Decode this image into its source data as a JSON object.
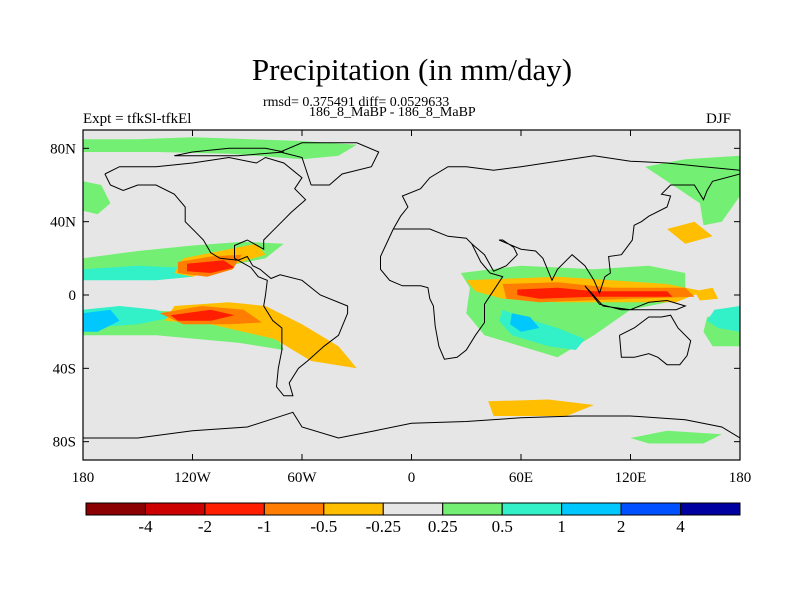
{
  "header": {
    "title": "Precipitation (in mm/day)",
    "stats": "rmsd= 0.375491 diff= 0.0529633",
    "runs": "186_8_MaBP - 186_8_MaBP",
    "expt": "Expt = tfkSl-tfkEl",
    "season": "DJF"
  },
  "chart_data": {
    "type": "heatmap",
    "title": "Precipitation (in mm/day)",
    "subtitle": "186_8_MaBP - 186_8_MaBP",
    "annotations": [
      "rmsd= 0.375491 diff= 0.0529633",
      "Expt = tfkSl-tfkEl",
      "DJF"
    ],
    "xlim": [
      -180,
      180
    ],
    "ylim": [
      -90,
      90
    ],
    "x_ticks": [
      {
        "value": -180,
        "label": "180"
      },
      {
        "value": -120,
        "label": "120W"
      },
      {
        "value": -60,
        "label": "60W"
      },
      {
        "value": 0,
        "label": "0"
      },
      {
        "value": 60,
        "label": "60E"
      },
      {
        "value": 120,
        "label": "120E"
      },
      {
        "value": 180,
        "label": "180"
      }
    ],
    "y_ticks": [
      {
        "value": 80,
        "label": "80N"
      },
      {
        "value": 40,
        "label": "40N"
      },
      {
        "value": 0,
        "label": "0"
      },
      {
        "value": -40,
        "label": "40S"
      },
      {
        "value": -80,
        "label": "80S"
      }
    ],
    "colorbar": {
      "labels": [
        "-4",
        "-2",
        "-1",
        "-0.5",
        "-0.25",
        "0.25",
        "0.5",
        "1",
        "2",
        "4"
      ],
      "colors": [
        "#8b0000",
        "#cd0000",
        "#ff1e00",
        "#ff7d00",
        "#ffbe00",
        "#e6e6e6",
        "#73f073",
        "#32f0c8",
        "#00c8ff",
        "#0050ff",
        "#0000a0"
      ]
    },
    "regions": [
      {
        "level": "0.5",
        "points": [
          [
            -180,
            85
          ],
          [
            -150,
            85
          ],
          [
            -120,
            86
          ],
          [
            -60,
            84
          ],
          [
            -30,
            82
          ],
          [
            -40,
            76
          ],
          [
            -60,
            74
          ],
          [
            -100,
            77
          ],
          [
            -140,
            78
          ],
          [
            -180,
            78
          ]
        ]
      },
      {
        "level": "0.5",
        "points": [
          [
            -180,
            62
          ],
          [
            -170,
            60
          ],
          [
            -165,
            50
          ],
          [
            -172,
            44
          ],
          [
            -180,
            46
          ]
        ]
      },
      {
        "level": "0.5",
        "points": [
          [
            128,
            70
          ],
          [
            150,
            74
          ],
          [
            180,
            76
          ],
          [
            180,
            54
          ],
          [
            170,
            40
          ],
          [
            160,
            38
          ],
          [
            158,
            50
          ],
          [
            140,
            62
          ]
        ]
      },
      {
        "level": "0.5",
        "points": [
          [
            -180,
            20
          ],
          [
            -150,
            24
          ],
          [
            -120,
            27
          ],
          [
            -92,
            29
          ],
          [
            -70,
            28
          ],
          [
            -80,
            20
          ],
          [
            -110,
            14
          ],
          [
            -150,
            10
          ],
          [
            -180,
            10
          ]
        ]
      },
      {
        "level": "0.5",
        "points": [
          [
            -180,
            -8
          ],
          [
            -150,
            -8
          ],
          [
            -110,
            -10
          ],
          [
            -75,
            -20
          ],
          [
            -70,
            -30
          ],
          [
            -95,
            -26
          ],
          [
            -140,
            -22
          ],
          [
            -180,
            -22
          ]
        ]
      },
      {
        "level": "0.5",
        "points": [
          [
            27,
            12
          ],
          [
            60,
            16
          ],
          [
            100,
            14
          ],
          [
            130,
            16
          ],
          [
            150,
            12
          ],
          [
            150,
            -2
          ],
          [
            120,
            -8
          ],
          [
            100,
            -22
          ],
          [
            80,
            -34
          ],
          [
            60,
            -28
          ],
          [
            40,
            -22
          ],
          [
            30,
            -10
          ],
          [
            32,
            4
          ]
        ]
      },
      {
        "level": "0.5",
        "points": [
          [
            162,
            -12
          ],
          [
            180,
            -8
          ],
          [
            180,
            -28
          ],
          [
            165,
            -28
          ],
          [
            160,
            -20
          ]
        ]
      },
      {
        "level": "0.5",
        "points": [
          [
            120,
            -78
          ],
          [
            140,
            -74
          ],
          [
            170,
            -76
          ],
          [
            160,
            -81
          ],
          [
            130,
            -81
          ]
        ]
      },
      {
        "level": "1",
        "points": [
          [
            -180,
            14
          ],
          [
            -150,
            16
          ],
          [
            -128,
            15
          ],
          [
            -120,
            10
          ],
          [
            -140,
            8
          ],
          [
            -180,
            8
          ]
        ]
      },
      {
        "level": "1",
        "points": [
          [
            -180,
            -8
          ],
          [
            -160,
            -6
          ],
          [
            -140,
            -8
          ],
          [
            -130,
            -12
          ],
          [
            -150,
            -16
          ],
          [
            -180,
            -18
          ]
        ]
      },
      {
        "level": "1",
        "points": [
          [
            50,
            -8
          ],
          [
            60,
            -12
          ],
          [
            80,
            -18
          ],
          [
            95,
            -24
          ],
          [
            90,
            -30
          ],
          [
            75,
            -28
          ],
          [
            55,
            -22
          ],
          [
            48,
            -14
          ]
        ]
      },
      {
        "level": "1",
        "points": [
          [
            166,
            -8
          ],
          [
            180,
            -6
          ],
          [
            180,
            -20
          ],
          [
            168,
            -18
          ],
          [
            162,
            -14
          ]
        ]
      },
      {
        "level": "2",
        "points": [
          [
            -180,
            -10
          ],
          [
            -165,
            -8
          ],
          [
            -160,
            -14
          ],
          [
            -172,
            -20
          ],
          [
            -180,
            -20
          ]
        ]
      },
      {
        "level": "2",
        "points": [
          [
            55,
            -10
          ],
          [
            65,
            -12
          ],
          [
            70,
            -18
          ],
          [
            60,
            -20
          ],
          [
            54,
            -16
          ]
        ]
      },
      {
        "level": "-0.25",
        "points": [
          [
            -125,
            20
          ],
          [
            -105,
            24
          ],
          [
            -85,
            28
          ],
          [
            -80,
            22
          ],
          [
            -100,
            16
          ],
          [
            -120,
            10
          ],
          [
            -130,
            12
          ]
        ]
      },
      {
        "level": "-0.25",
        "points": [
          [
            -130,
            -6
          ],
          [
            -100,
            -4
          ],
          [
            -80,
            -6
          ],
          [
            -60,
            -16
          ],
          [
            -40,
            -28
          ],
          [
            -30,
            -40
          ],
          [
            -55,
            -36
          ],
          [
            -75,
            -24
          ],
          [
            -110,
            -16
          ],
          [
            -135,
            -14
          ]
        ]
      },
      {
        "level": "-0.25",
        "points": [
          [
            30,
            8
          ],
          [
            80,
            10
          ],
          [
            140,
            6
          ],
          [
            160,
            2
          ],
          [
            145,
            -4
          ],
          [
            110,
            -4
          ],
          [
            80,
            -4
          ],
          [
            50,
            -2
          ],
          [
            35,
            2
          ]
        ]
      },
      {
        "level": "-0.25",
        "points": [
          [
            42,
            -58
          ],
          [
            75,
            -57
          ],
          [
            100,
            -60
          ],
          [
            85,
            -66
          ],
          [
            45,
            -66
          ]
        ]
      },
      {
        "level": "-0.25",
        "points": [
          [
            140,
            36
          ],
          [
            155,
            40
          ],
          [
            165,
            32
          ],
          [
            150,
            28
          ]
        ]
      },
      {
        "level": "-0.25",
        "points": [
          [
            155,
            2
          ],
          [
            165,
            4
          ],
          [
            168,
            -2
          ],
          [
            158,
            -3
          ]
        ]
      },
      {
        "level": "-0.5",
        "points": [
          [
            -128,
            18
          ],
          [
            -110,
            21
          ],
          [
            -93,
            22
          ],
          [
            -98,
            14
          ],
          [
            -112,
            10
          ],
          [
            -128,
            12
          ]
        ]
      },
      {
        "level": "-0.5",
        "points": [
          [
            -138,
            -10
          ],
          [
            -115,
            -6
          ],
          [
            -92,
            -8
          ],
          [
            -82,
            -15
          ],
          [
            -100,
            -16
          ],
          [
            -125,
            -16
          ]
        ]
      },
      {
        "level": "-0.5",
        "points": [
          [
            50,
            6
          ],
          [
            80,
            7
          ],
          [
            110,
            4
          ],
          [
            150,
            4
          ],
          [
            155,
            -1
          ],
          [
            120,
            -2
          ],
          [
            70,
            -4
          ],
          [
            52,
            -2
          ]
        ]
      },
      {
        "level": "-1",
        "points": [
          [
            -123,
            17
          ],
          [
            -103,
            19
          ],
          [
            -97,
            15
          ],
          [
            -110,
            12
          ],
          [
            -123,
            13
          ]
        ]
      },
      {
        "level": "-1",
        "points": [
          [
            -132,
            -11
          ],
          [
            -110,
            -8
          ],
          [
            -97,
            -11
          ],
          [
            -110,
            -14
          ],
          [
            -128,
            -14
          ]
        ]
      },
      {
        "level": "-1",
        "points": [
          [
            58,
            3
          ],
          [
            80,
            4
          ],
          [
            100,
            2
          ],
          [
            140,
            2
          ],
          [
            143,
            -1
          ],
          [
            100,
            -1
          ],
          [
            70,
            -2
          ],
          [
            58,
            0
          ]
        ]
      }
    ]
  }
}
